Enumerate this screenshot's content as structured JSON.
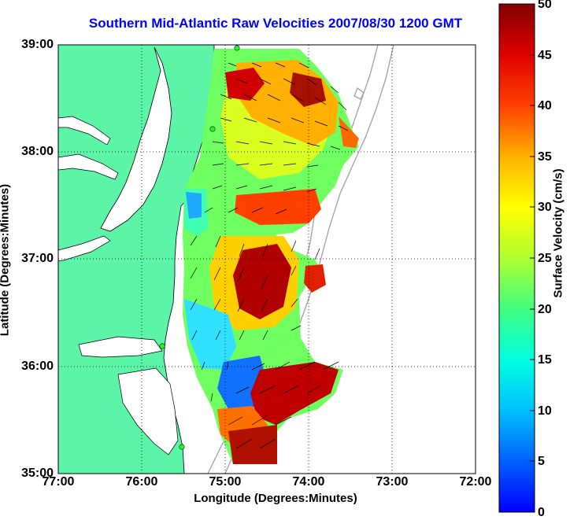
{
  "title": "Southern Mid-Atlantic Raw Velocities 2007/08/30 1200 GMT",
  "xlabel": "Longitude (Degrees:Minutes)",
  "ylabel": "Latitude (Degrees:Minutes)",
  "colorbar": {
    "label": "Surface Velocity (cm/s)",
    "ticks": [
      "0",
      "5",
      "10",
      "15",
      "20",
      "25",
      "30",
      "35",
      "40",
      "45",
      "50"
    ],
    "min": 0,
    "max": 50,
    "colormap": "jet"
  },
  "axes": {
    "x_ticks": [
      "77:00",
      "76:00",
      "75:00",
      "74:00",
      "73:00",
      "72:00"
    ],
    "y_ticks": [
      "39:00",
      "38:00",
      "37:00",
      "36:00",
      "35:00"
    ],
    "xlim": [
      -77,
      -72
    ],
    "ylim": [
      35,
      39
    ],
    "grid": "dotted"
  },
  "colors": {
    "land": "#5cf5a8",
    "water": "#ffffff",
    "coastline": "#000000",
    "bathymetry": "#a0a0a0",
    "stations": "#33ee33"
  }
}
